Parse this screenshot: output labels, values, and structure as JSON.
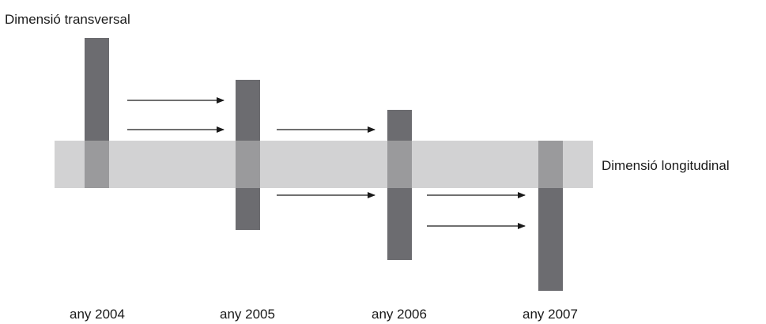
{
  "diagram": {
    "title_vertical": "Dimensió transversal",
    "title_horizontal": "Dimensió longitudinal",
    "years": [
      "any 2004",
      "any 2005",
      "any 2006",
      "any 2007"
    ],
    "colors": {
      "band": "#d2d2d3",
      "bar": "#6c6c70",
      "overlap": "#9a9a9c",
      "arrow": "#1a1a1a",
      "text": "#1a1a1a"
    }
  }
}
